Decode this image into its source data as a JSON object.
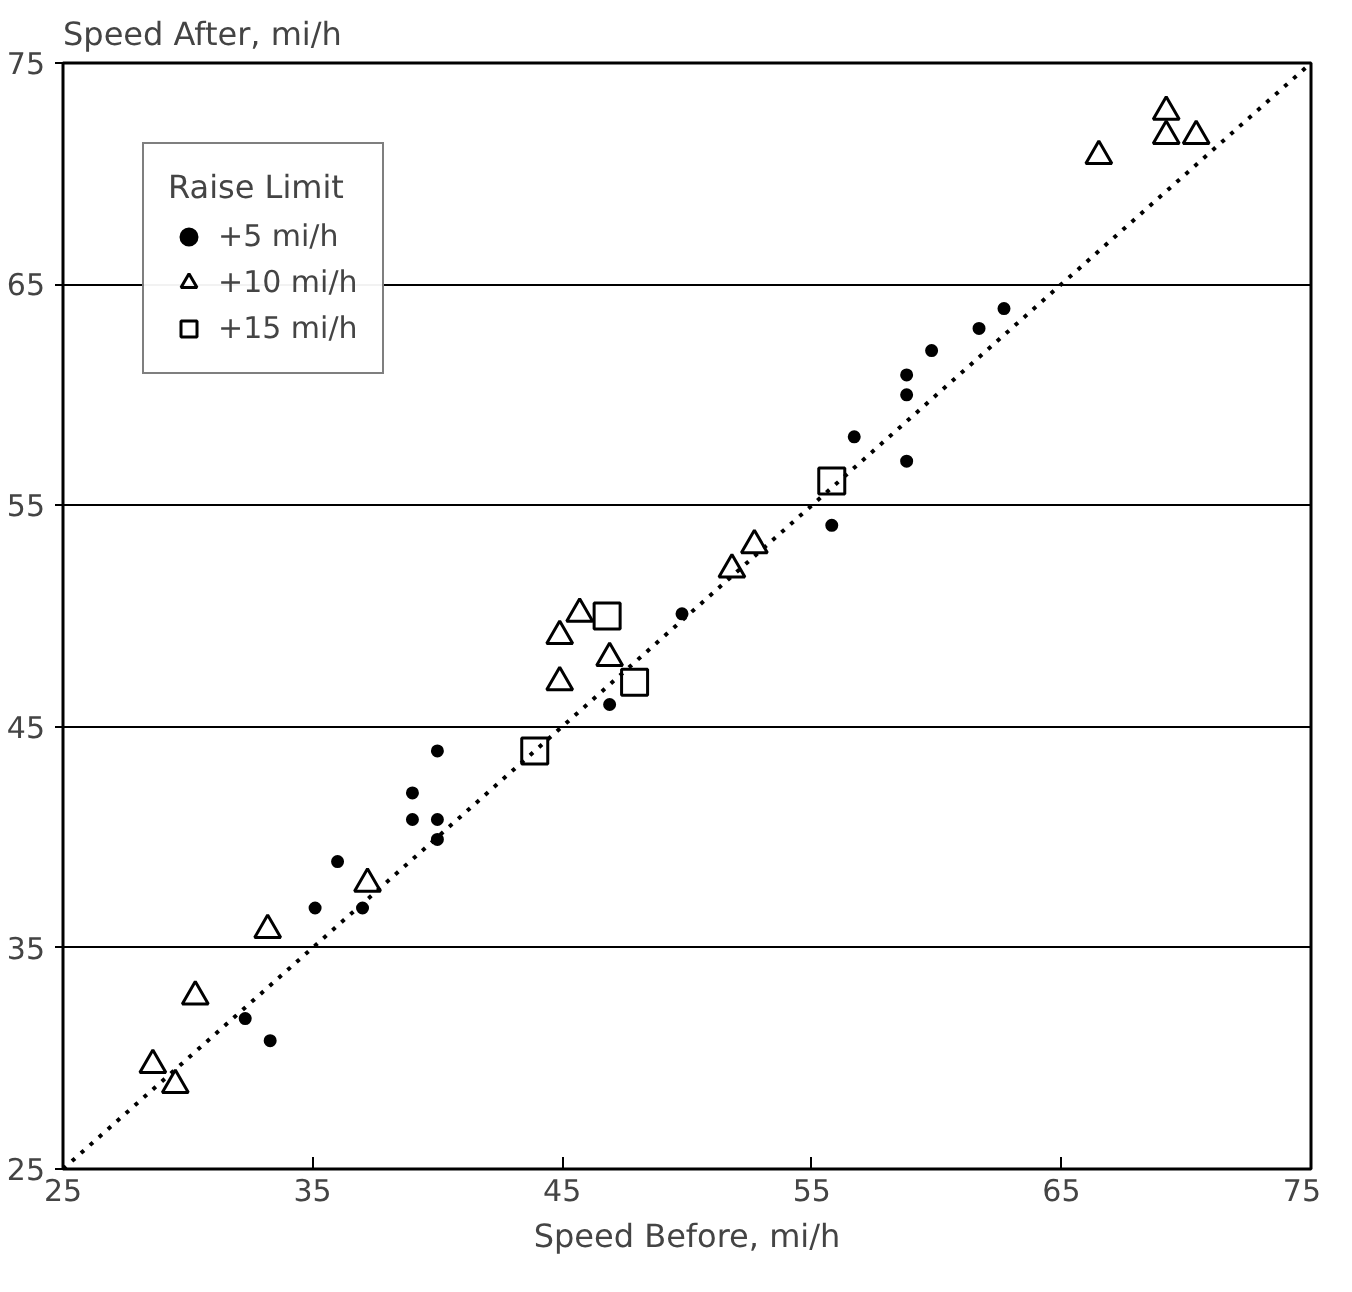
{
  "chart_data": {
    "type": "scatter",
    "xlabel": "Speed Before, mi/h",
    "ylabel": "Speed After, mi/h",
    "legend_title": "Raise Limit",
    "legend": "top left",
    "grid": "y",
    "xlim": [
      25,
      75
    ],
    "ylim": [
      25,
      75
    ],
    "xticks": [
      25,
      35,
      45,
      55,
      65,
      75
    ],
    "yticks": [
      25,
      35,
      45,
      55,
      65,
      75
    ],
    "series": [
      {
        "name": "+5 mi/h",
        "color": "#000000",
        "marker": "circle",
        "x": [
          32.3,
          33.3,
          35.1,
          36.0,
          37.0,
          39.0,
          39.0,
          40.0,
          40.0,
          40.0,
          46.9,
          49.8,
          55.8,
          56.7,
          58.8,
          58.8,
          58.8,
          59.8,
          61.7,
          62.7
        ],
        "values": [
          31.8,
          30.8,
          36.8,
          38.9,
          36.8,
          42.0,
          40.8,
          40.8,
          39.9,
          43.9,
          46.0,
          50.1,
          54.1,
          58.1,
          57.0,
          60.0,
          60.9,
          62.0,
          63.0,
          63.9
        ]
      },
      {
        "name": "+10 mi/h",
        "color": "#000000",
        "marker": "triangle",
        "x": [
          28.6,
          29.5,
          30.3,
          33.2,
          37.2,
          44.9,
          44.9,
          45.7,
          46.9,
          51.8,
          52.7,
          66.5,
          69.2,
          69.2,
          70.4
        ],
        "values": [
          29.7,
          28.8,
          32.8,
          35.8,
          37.9,
          49.1,
          47.0,
          50.1,
          48.1,
          52.1,
          53.2,
          70.8,
          72.8,
          71.7,
          71.7
        ]
      },
      {
        "name": "+15 mi/h",
        "color": "#000000",
        "marker": "square",
        "x": [
          43.9,
          46.8,
          47.9,
          55.8
        ],
        "values": [
          43.9,
          50.0,
          47.0,
          56.1
        ]
      },
      {
        "type": "line",
        "color": "#000000",
        "line_style": "dotted",
        "x": [
          25,
          75
        ],
        "values": [
          25,
          75
        ]
      }
    ]
  }
}
